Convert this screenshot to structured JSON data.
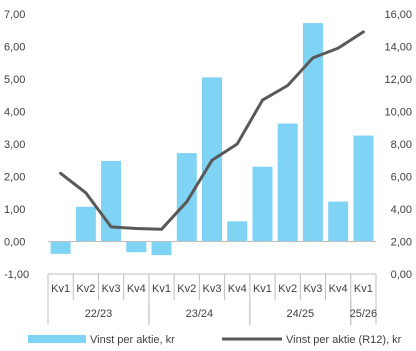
{
  "chart_data": {
    "type": "bar+line",
    "categories": [
      "Kv1",
      "Kv2",
      "Kv3",
      "Kv4",
      "Kv1",
      "Kv2",
      "Kv3",
      "Kv4",
      "Kv1",
      "Kv2",
      "Kv3",
      "Kv4",
      "Kv1"
    ],
    "groups": [
      {
        "label": "22/23",
        "start": 0,
        "end": 3
      },
      {
        "label": "23/24",
        "start": 4,
        "end": 7
      },
      {
        "label": "24/25",
        "start": 8,
        "end": 11
      },
      {
        "label": "25/26",
        "start": 12,
        "end": 12
      }
    ],
    "series": [
      {
        "name": "Vinst per aktie, kr",
        "kind": "bar",
        "axis": "left",
        "color": "#7fd4f6",
        "values": [
          -0.38,
          1.07,
          2.48,
          -0.33,
          -0.42,
          2.72,
          5.05,
          0.62,
          2.3,
          3.63,
          6.72,
          1.23,
          3.26
        ]
      },
      {
        "name": "Vinst per aktie (R12), kr",
        "kind": "line",
        "axis": "right",
        "color": "#595959",
        "values": [
          6.2,
          5.0,
          2.9,
          2.8,
          2.75,
          4.45,
          7.0,
          8.0,
          10.7,
          11.6,
          13.3,
          13.9,
          14.9
        ]
      }
    ],
    "y_left": {
      "min": -1,
      "max": 7,
      "ticks": [
        "-1,00",
        "0,00",
        "1,00",
        "2,00",
        "3,00",
        "4,00",
        "5,00",
        "6,00",
        "7,00"
      ]
    },
    "y_right": {
      "min": 0,
      "max": 16,
      "ticks": [
        "0,00",
        "2,00",
        "4,00",
        "6,00",
        "8,00",
        "10,00",
        "12,00",
        "14,00",
        "16,00"
      ]
    },
    "grid": false,
    "legend_position": "bottom"
  }
}
